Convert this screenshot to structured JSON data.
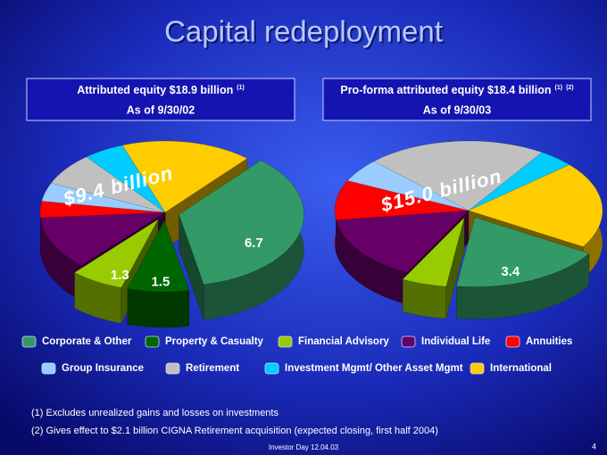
{
  "title": "Capital redeployment",
  "chart_data": [
    {
      "type": "pie",
      "title": "Attributed equity $18.9 billion",
      "title_notes": [
        "(1)"
      ],
      "subtitle": "As of 9/30/02",
      "annotation": "$9.4 billion",
      "categories": [
        "International",
        "Corporate & Other",
        "Property & Casualty",
        "Financial Advisory",
        "Individual Life",
        "Annuities",
        "Group Insurance",
        "Retirement",
        "Investment Mgmt/ Other Asset Mgmt"
      ],
      "values": [
        3.2,
        6.7,
        1.5,
        1.3,
        2.3,
        0.7,
        0.8,
        1.4,
        1.0
      ],
      "value_labels": [
        null,
        "6.7",
        "1.5",
        "1.3",
        null,
        null,
        null,
        null,
        null
      ],
      "colors": [
        "#ffcc00",
        "#339966",
        "#006600",
        "#99cc00",
        "#660066",
        "#ff0000",
        "#99ccff",
        "#c0c0c0",
        "#00ccff"
      ],
      "exploded": [
        false,
        true,
        true,
        true,
        false,
        false,
        false,
        false,
        false
      ]
    },
    {
      "type": "pie",
      "title": "Pro-forma attributed equity $18.4 billion",
      "title_notes": [
        "(1)",
        "(2)"
      ],
      "subtitle": "As of 9/30/03",
      "annotation": "$15.0 billion",
      "categories": [
        "Retirement",
        "Investment Mgmt/ Other Asset Mgmt",
        "International",
        "Corporate & Other",
        "Financial Advisory",
        "Individual Life",
        "Annuities",
        "Group Insurance"
      ],
      "values": [
        4.0,
        0.8,
        3.7,
        3.4,
        1.0,
        2.8,
        1.7,
        1.0
      ],
      "value_labels": [
        null,
        null,
        null,
        "3.4",
        null,
        null,
        null,
        null
      ],
      "colors": [
        "#c0c0c0",
        "#00ccff",
        "#ffcc00",
        "#339966",
        "#99cc00",
        "#660066",
        "#ff0000",
        "#99ccff"
      ],
      "exploded": [
        false,
        false,
        false,
        true,
        true,
        false,
        false,
        false
      ]
    }
  ],
  "legend": [
    {
      "name": "Corporate & Other",
      "color": "#339966"
    },
    {
      "name": "Property & Casualty",
      "color": "#006600"
    },
    {
      "name": "Financial Advisory",
      "color": "#99cc00"
    },
    {
      "name": "Individual Life",
      "color": "#660066"
    },
    {
      "name": "Annuities",
      "color": "#ff0000"
    },
    {
      "name": "Group Insurance",
      "color": "#99ccff"
    },
    {
      "name": "Retirement",
      "color": "#c0c0c0"
    },
    {
      "name": "Investment Mgmt/ Other Asset Mgmt",
      "color": "#00ccff"
    },
    {
      "name": "International",
      "color": "#ffcc00"
    }
  ],
  "footnotes": [
    "(1) Excludes unrealized gains and losses on investments",
    "(2) Gives effect to $2.1 billion CIGNA Retirement acquisition (expected closing, first half 2004)"
  ],
  "footer": "Investor Day 12.04.03",
  "page_number": "4"
}
